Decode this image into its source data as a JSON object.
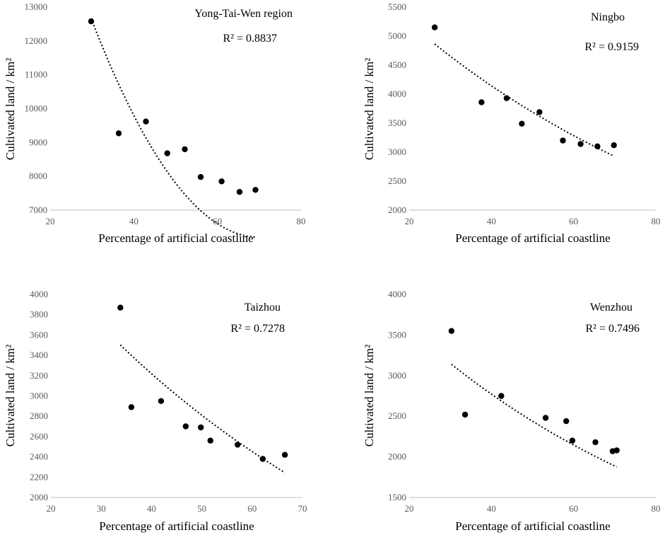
{
  "chart_data": [
    {
      "type": "scatter",
      "title": "Yong-Tai-Wen region",
      "r2_label": "R² = 0.8837",
      "xlabel": "Percentage of artificial coastline",
      "ylabel": "Cultivated land / km²",
      "xlim": [
        20,
        80
      ],
      "ylim": [
        7000,
        13000
      ],
      "xticks": [
        "20",
        "40",
        "60",
        "80"
      ],
      "yticks": [
        "7000",
        "8000",
        "9000",
        "10000",
        "11000",
        "12000",
        "13000"
      ],
      "points": {
        "x": [
          29.8,
          36.4,
          42.9,
          48.0,
          52.2,
          56.0,
          61.0,
          65.3,
          69.1
        ],
        "y": [
          12580,
          9270,
          9620,
          8680,
          8800,
          7980,
          7850,
          7540,
          7600
        ]
      },
      "trend": {
        "type": "polynomial",
        "x_range": [
          29.8,
          69.1
        ],
        "coef": [
          25800,
          -560,
          4.0
        ]
      }
    },
    {
      "type": "scatter",
      "title": "Ningbo",
      "r2_label": "R² = 0.9159",
      "xlabel": "Percentage of artificial coastline",
      "ylabel": "Cultivated land / km²",
      "xlim": [
        20,
        80
      ],
      "ylim": [
        2000,
        5500
      ],
      "xticks": [
        "20",
        "40",
        "60",
        "80"
      ],
      "yticks": [
        "2000",
        "2500",
        "3000",
        "3500",
        "4000",
        "4500",
        "5000",
        "5500"
      ],
      "points": {
        "x": [
          26.2,
          37.6,
          43.7,
          47.4,
          51.7,
          57.4,
          61.7,
          65.8,
          69.8
        ],
        "y": [
          5150,
          3860,
          3930,
          3490,
          3690,
          3200,
          3140,
          3100,
          3120
        ]
      },
      "trend": {
        "type": "exponential",
        "x_range": [
          26.2,
          69.8
        ],
        "a": 6590,
        "b": -0.0116
      }
    },
    {
      "type": "scatter",
      "title": "Taizhou",
      "r2_label": "R² = 0.7278",
      "xlabel": "Percentage of artificial coastline",
      "ylabel": "Cultivated land / km²",
      "xlim": [
        20,
        70
      ],
      "ylim": [
        2000,
        4000
      ],
      "xticks": [
        "20",
        "30",
        "40",
        "50",
        "60",
        "70"
      ],
      "yticks": [
        "2000",
        "2200",
        "2400",
        "2600",
        "2800",
        "3000",
        "3200",
        "3400",
        "3600",
        "3800",
        "4000"
      ],
      "points": {
        "x": [
          33.8,
          36.0,
          41.9,
          46.8,
          49.8,
          51.7,
          57.1,
          62.1,
          66.5
        ],
        "y": [
          3870,
          2890,
          2950,
          2700,
          2690,
          2560,
          2520,
          2380,
          2420
        ]
      },
      "trend": {
        "type": "exponential",
        "x_range": [
          33.8,
          66.5
        ],
        "a": 5546,
        "b": -0.0136
      }
    },
    {
      "type": "scatter",
      "title": "Wenzhou",
      "r2_label": "R² = 0.7496",
      "xlabel": "Percentage of artificial coastline",
      "ylabel": "Cultivated land / km²",
      "xlim": [
        20,
        80
      ],
      "ylim": [
        1500,
        4000
      ],
      "xticks": [
        "20",
        "40",
        "60",
        "80"
      ],
      "yticks": [
        "1500",
        "2000",
        "2500",
        "3000",
        "3500",
        "4000"
      ],
      "points": {
        "x": [
          30.3,
          33.6,
          42.4,
          53.2,
          58.2,
          59.7,
          65.3,
          69.5,
          70.5
        ],
        "y": [
          3550,
          2520,
          2750,
          2480,
          2440,
          2200,
          2180,
          2070,
          2080
        ]
      },
      "trend": {
        "type": "exponential",
        "x_range": [
          30.3,
          70.5
        ],
        "a": 4626,
        "b": -0.0128
      }
    }
  ]
}
